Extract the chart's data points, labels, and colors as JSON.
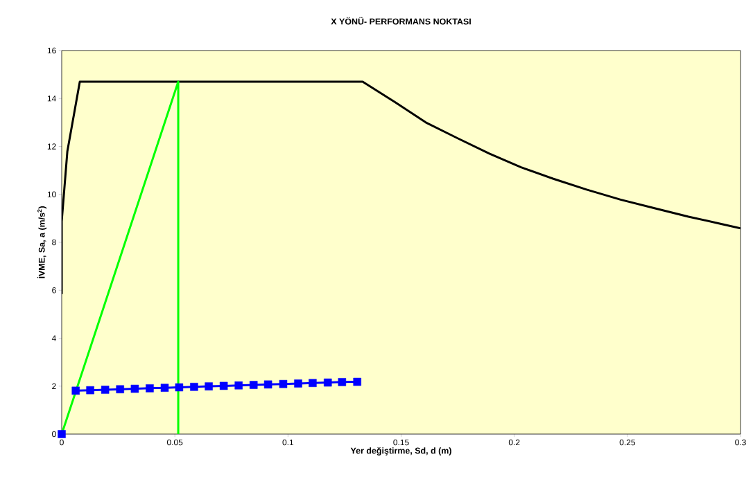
{
  "chart_data": {
    "type": "line",
    "title": "X YÖNÜ- PERFORMANS NOKTASI",
    "xlabel": "Yer değiştirme, Sd, d (m)",
    "ylabel": "İVME, Sa, a (m/s$^{2}$)",
    "xlim": [
      0,
      0.3
    ],
    "ylim": [
      0,
      16
    ],
    "xticks": [
      0,
      0.05,
      0.1,
      0.15,
      0.2,
      0.25,
      0.3
    ],
    "yticks": [
      0,
      2,
      4,
      6,
      8,
      10,
      12,
      14,
      16
    ],
    "grid": false,
    "line_style": "solid",
    "series": [
      {
        "color": "#000000",
        "marker": "none",
        "x": [
          0,
          0,
          0.0025,
          0.008,
          0.133,
          0.1474,
          0.1609,
          0.175,
          0.189,
          0.203,
          0.2173,
          0.232,
          0.247,
          0.262,
          0.277,
          0.2918,
          0.3
        ],
        "values": [
          5.84,
          8.87,
          11.8,
          14.7,
          14.7,
          13.84,
          13.0,
          12.34,
          11.7,
          11.13,
          10.65,
          10.2,
          9.78,
          9.42,
          9.07,
          8.76,
          8.58
        ]
      },
      {
        "color": "#00ff00",
        "marker": "none",
        "x": [
          0,
          0.0515,
          0.0515
        ],
        "values": [
          0,
          14.7,
          0
        ]
      },
      {
        "color": "#0000ff",
        "marker": "square",
        "x": [
          0.0062,
          0.0126,
          0.0192,
          0.0258,
          0.0323,
          0.0389,
          0.0455,
          0.0519,
          0.0585,
          0.065,
          0.0716,
          0.0782,
          0.0848,
          0.0912,
          0.0979,
          0.1045,
          0.1109,
          0.1176,
          0.1239,
          0.1306
        ],
        "values": [
          1.81,
          1.83,
          1.85,
          1.87,
          1.89,
          1.91,
          1.93,
          1.95,
          1.97,
          1.99,
          2.01,
          2.03,
          2.05,
          2.07,
          2.09,
          2.11,
          2.13,
          2.15,
          2.17,
          2.18
        ]
      },
      {
        "type": "scatter",
        "color": "#0000ff",
        "marker": "square",
        "x": [
          0
        ],
        "values": [
          0
        ]
      }
    ]
  }
}
